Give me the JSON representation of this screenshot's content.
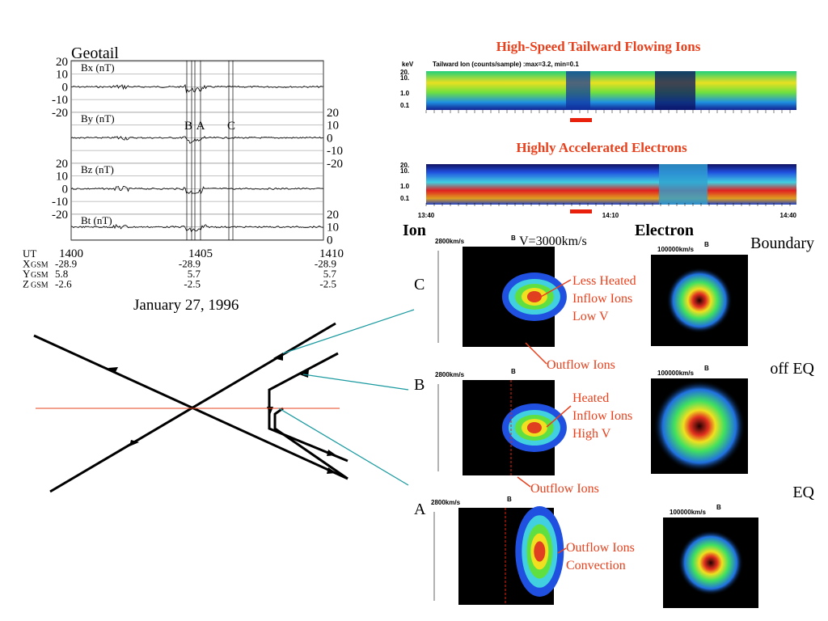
{
  "geotail": {
    "title": "Geotail",
    "panels": [
      {
        "label": "Bx (nT)",
        "ticks": [
          "20",
          "10",
          "0",
          "-10",
          "-20"
        ]
      },
      {
        "label": "By (nT)",
        "ticks": [
          "20",
          "10",
          "0",
          "-10",
          "-20"
        ]
      },
      {
        "label": "Bz (nT)",
        "ticks": [
          "20",
          "10",
          "0",
          "-10",
          "-20"
        ]
      },
      {
        "label": "Bt (nT)",
        "ticks": [
          "20",
          "10",
          "0"
        ]
      }
    ],
    "markers": [
      "B",
      "A",
      "C"
    ],
    "rows": [
      {
        "name": "UT",
        "sub": "",
        "values": [
          "1400",
          "1405",
          "1410"
        ]
      },
      {
        "name": "X",
        "sub": "GSM",
        "values": [
          "-28.9",
          "-28.9",
          "-28.9"
        ]
      },
      {
        "name": "Y",
        "sub": "GSM",
        "values": [
          "5.8",
          "5.7",
          "5.7"
        ]
      },
      {
        "name": "Z",
        "sub": "GSM",
        "values": [
          "-2.6",
          "-2.5",
          "-2.5"
        ]
      }
    ],
    "date": "January 27, 1996"
  },
  "spectrograms": {
    "ion_title": "High-Speed Tailward Flowing Ions",
    "unit": "keV",
    "ion_subtitle": "Tailward Ion  (counts/sample) :max=3.2, min=0.1",
    "ion_ticks": [
      "20.",
      "10.",
      "1.0",
      "0.1"
    ],
    "electron_title": "Highly Accelerated Electrons",
    "electron_ticks": [
      "20.",
      "10.",
      "1.0",
      "0.1"
    ],
    "times": [
      "13:40",
      "14:10",
      "14:40"
    ]
  },
  "distributions": {
    "ion_header": "Ion",
    "electron_header": "Electron",
    "velocity": "V=3000km/s",
    "field": "B",
    "ion_scale": "2800km/s",
    "electron_scale": "100000km/s",
    "rows": [
      {
        "label": "C",
        "electron_label": "Boundary"
      },
      {
        "label": "B",
        "electron_label": "off EQ"
      },
      {
        "label": "A",
        "electron_label": "EQ"
      }
    ],
    "annotations": [
      [
        "Less Heated",
        "Inflow Ions",
        "Low V"
      ],
      [
        "Outflow Ions"
      ],
      [
        "Heated",
        "Inflow Ions",
        "High V"
      ],
      [
        "Outflow Ions"
      ],
      [
        "Outflow Ions",
        "Convection"
      ]
    ]
  }
}
